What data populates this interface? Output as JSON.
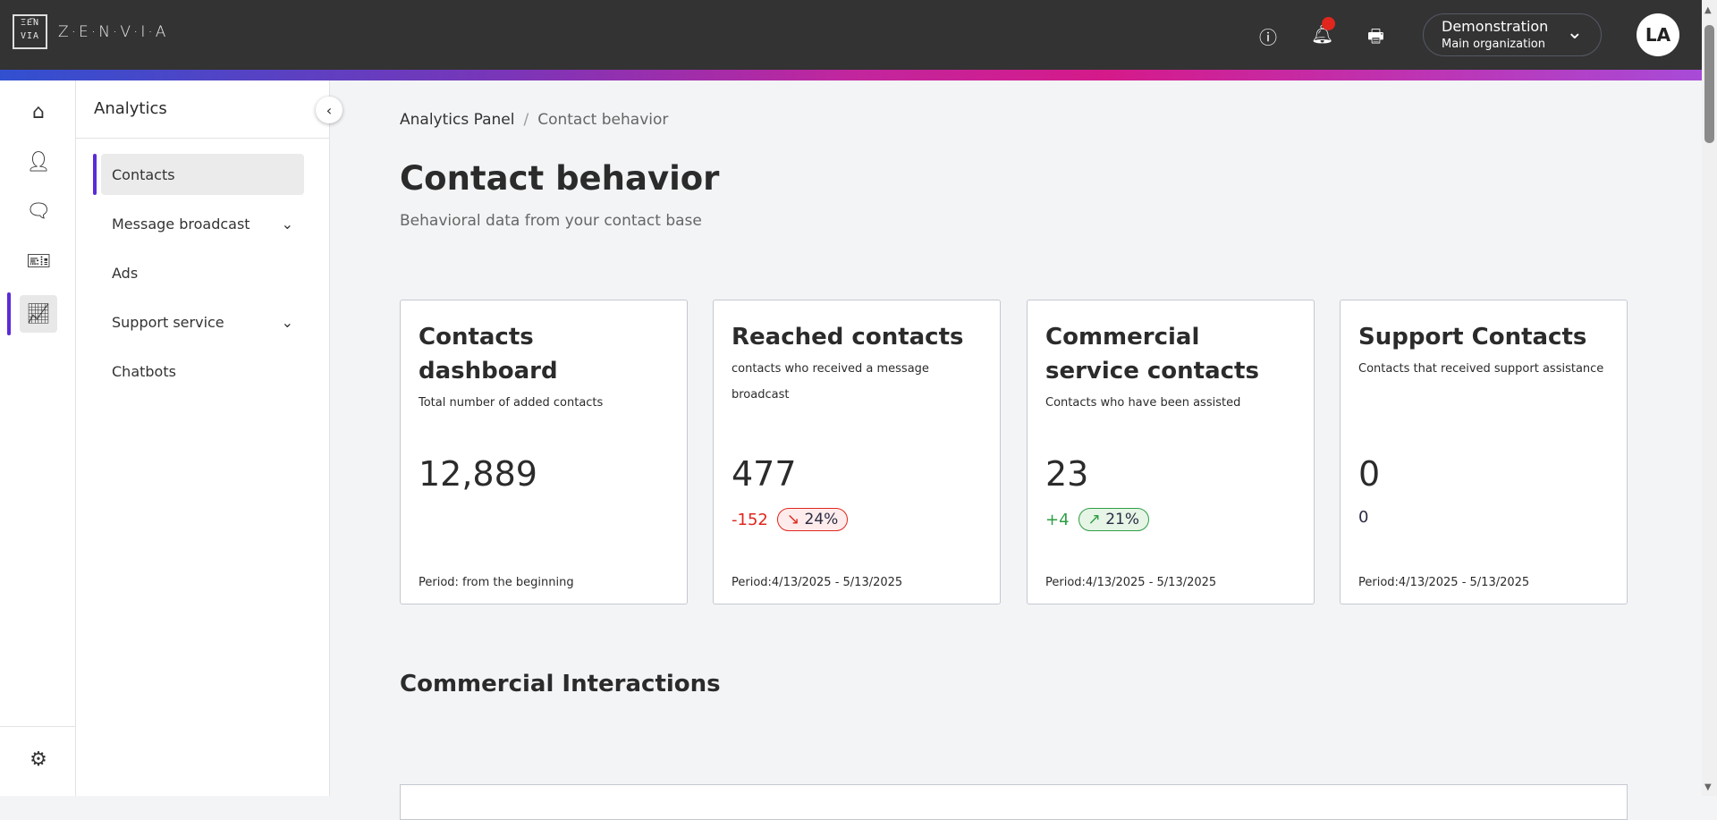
{
  "header": {
    "logo": "ZEN VIA",
    "brand": "Z·E·N·V·I·A",
    "org_name": "Demonstration",
    "org_sub": "Main organization",
    "avatar": "LA",
    "notification_color": "#e0261d"
  },
  "sidebar": {
    "title": "Analytics",
    "items": [
      {
        "label": "Contacts",
        "active": true
      },
      {
        "label": "Message broadcast",
        "expandable": true
      },
      {
        "label": "Ads"
      },
      {
        "label": "Support service",
        "expandable": true
      },
      {
        "label": "Chatbots"
      }
    ]
  },
  "breadcrumb": {
    "root": "Analytics Panel",
    "separator": "/",
    "current": "Contact behavior"
  },
  "page": {
    "title": "Contact behavior",
    "subtitle": "Behavioral data from your contact base"
  },
  "cards": [
    {
      "title": "Contacts dashboard",
      "desc": "Total number of added contacts",
      "value": "12,889",
      "period": "Period: from the beginning"
    },
    {
      "title": "Reached contacts",
      "desc": "contacts who received a message broadcast",
      "value": "477",
      "delta": "-152",
      "pct": "24%",
      "trend": "down",
      "period": "Period:4/13/2025 - 5/13/2025"
    },
    {
      "title": "Commercial service contacts",
      "desc": "Contacts who have been assisted",
      "value": "23",
      "delta": "+4",
      "pct": "21%",
      "trend": "up",
      "period": "Period:4/13/2025 - 5/13/2025"
    },
    {
      "title": "Support Contacts",
      "desc": "Contacts that received support assistance",
      "value": "0",
      "delta": "0",
      "period": "Period:4/13/2025 - 5/13/2025"
    }
  ],
  "section": {
    "title": "Commercial Interactions"
  },
  "colors": {
    "accent": "#5b2bd6",
    "negative": "#e0261d",
    "positive": "#2e9e44"
  }
}
